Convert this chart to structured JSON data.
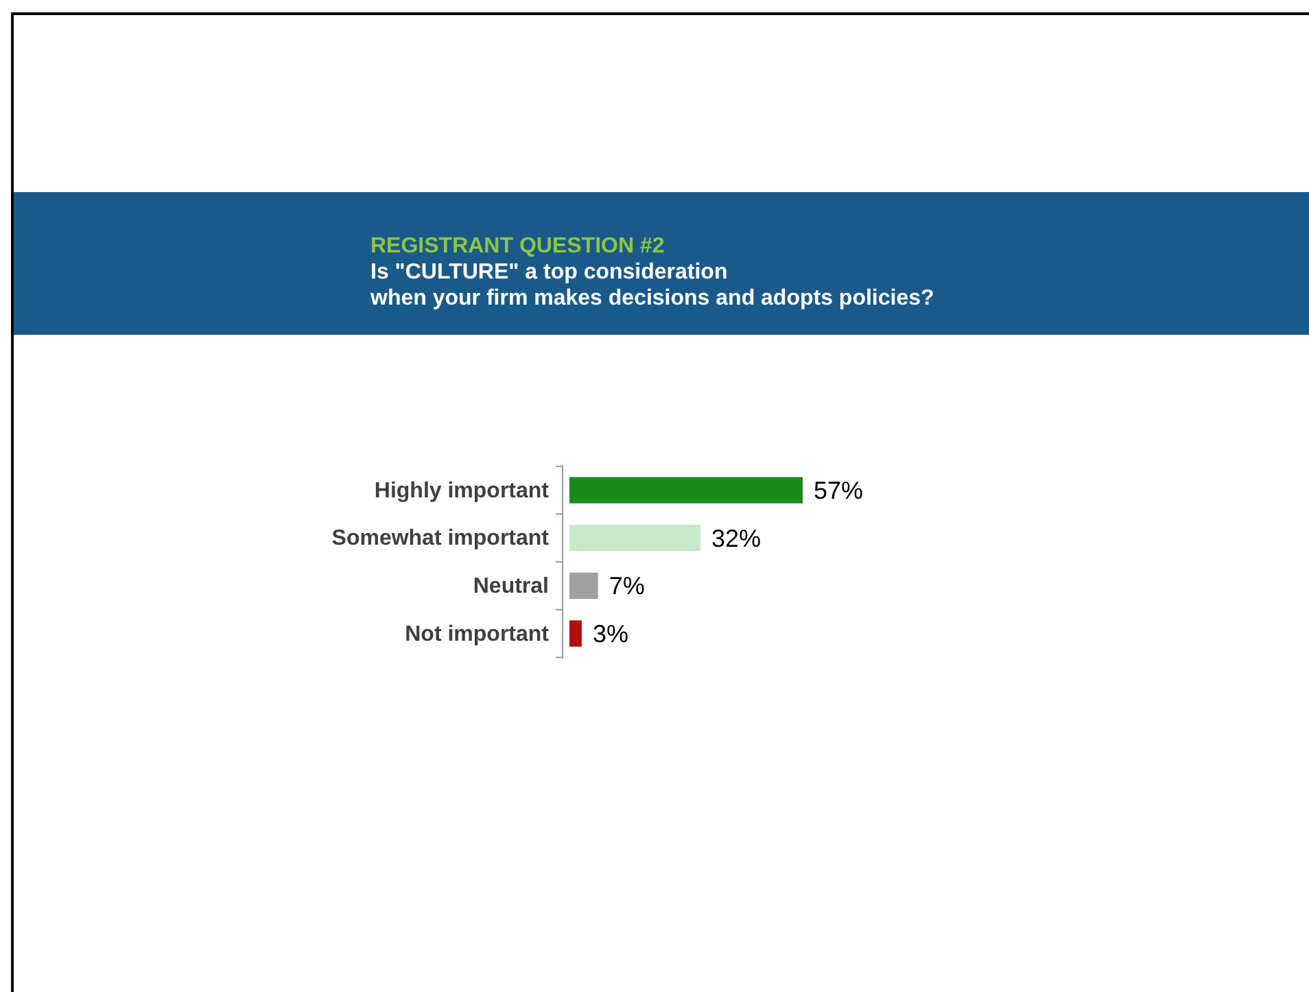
{
  "chart_data": {
    "type": "bar",
    "orientation": "horizontal",
    "title": "REGISTRANT QUESTION #2",
    "subtitle": "Is \"CULTURE\" a top consideration\nwhen your firm makes decisions and adopts policies?",
    "categories": [
      "Highly important",
      "Somewhat important",
      "Neutral",
      "Not important"
    ],
    "values": [
      57,
      32,
      7,
      3
    ],
    "colors": [
      "#1a8a1a",
      "#c8e8c8",
      "#a0a0a0",
      "#b01010"
    ],
    "value_labels": [
      "57%",
      "32%",
      "7%",
      "3%"
    ]
  }
}
